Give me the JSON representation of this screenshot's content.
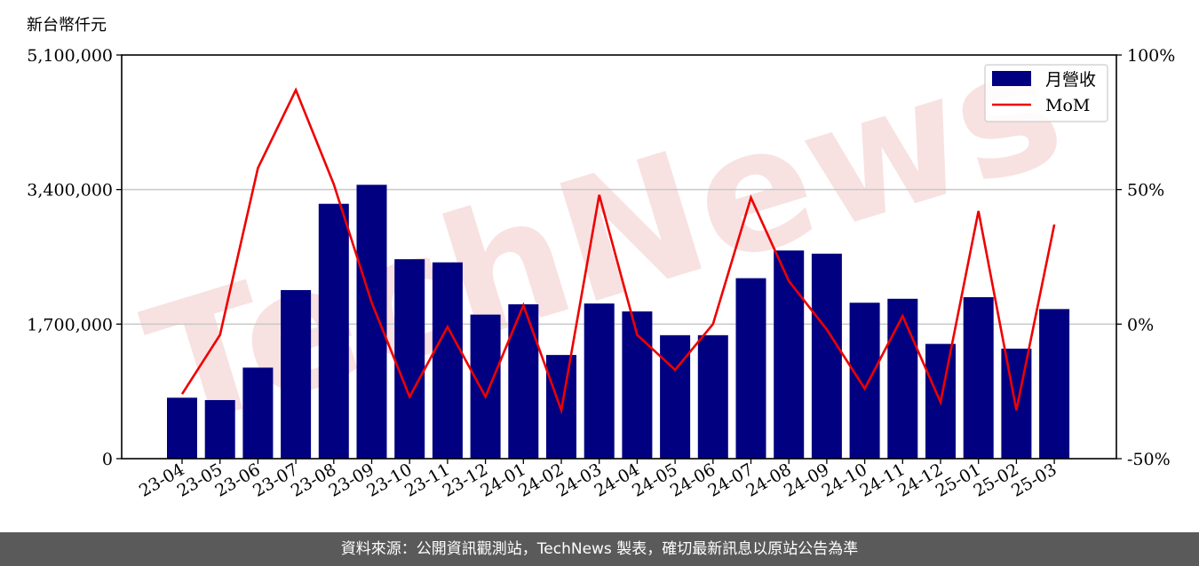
{
  "footer": {
    "text": "資料來源：公開資訊觀測站，TechNews 製表，確切最新訊息以原站公告為準"
  },
  "watermark": {
    "text": "TechNews",
    "color": "#f2c8c8"
  },
  "chart_data": {
    "type": "bar+line",
    "categories": [
      "23-04",
      "23-05",
      "23-06",
      "23-07",
      "23-08",
      "23-09",
      "23-10",
      "23-11",
      "23-12",
      "24-01",
      "24-02",
      "24-03",
      "24-04",
      "24-05",
      "24-06",
      "24-07",
      "24-08",
      "24-09",
      "24-10",
      "24-11",
      "24-12",
      "25-01",
      "25-02",
      "25-03"
    ],
    "bar_series": {
      "name": "月營收",
      "color": "#000080",
      "values": [
        770000,
        740000,
        1150000,
        2130000,
        3220000,
        3460000,
        2520000,
        2480000,
        1820000,
        1950000,
        1310000,
        1960000,
        1860000,
        1560000,
        1560000,
        2280000,
        2630000,
        2590000,
        1970000,
        2020000,
        1450000,
        2040000,
        1390000,
        1890000
      ]
    },
    "line_series": {
      "name": "MoM",
      "color": "#ee0000",
      "values": [
        -26,
        -4,
        58,
        87,
        52,
        8,
        -27,
        -1,
        -27,
        7,
        -32,
        48,
        -4,
        -17,
        0,
        47,
        16,
        -2,
        -24,
        3,
        -29,
        42,
        -32,
        37
      ]
    },
    "y_left": {
      "label": "新台幣仟元",
      "ylim": [
        0,
        5100000
      ],
      "ticks": [
        0,
        1700000,
        3400000,
        5100000
      ],
      "tick_labels": [
        "0",
        "1,700,000",
        "3,400,000",
        "5,100,000"
      ]
    },
    "y_right": {
      "ylim": [
        -50,
        100
      ],
      "ticks": [
        -50,
        0,
        50,
        100
      ],
      "tick_labels": [
        "-50%",
        "0%",
        "50%",
        "100%"
      ]
    },
    "grid": "horizontal",
    "legend": "top-right"
  }
}
